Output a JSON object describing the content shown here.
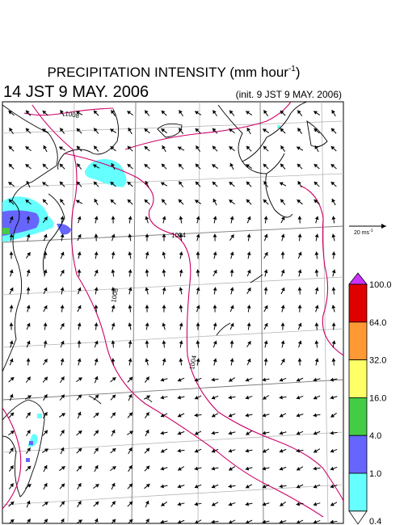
{
  "title": {
    "text": "PRECIPITATION INTENSITY (mm hour",
    "superscript": "-1",
    "close": ")"
  },
  "valid_time": "14 JST 9 MAY. 2006",
  "init_time": "(init. 9 JST 9 MAY. 2006)",
  "vector_scale": {
    "label": "20 ms",
    "superscript": "-1"
  },
  "isobar_labels": [
    "1008",
    "1004",
    "1008",
    "1004"
  ],
  "colorbar": {
    "labels": [
      "100.0",
      "64.0",
      "32.0",
      "16.0",
      "4.0",
      "1.0",
      "0.4"
    ],
    "colors": [
      "#cc33ff",
      "#e00000",
      "#ff9933",
      "#ffff66",
      "#44cc44",
      "#6666ff",
      "#66ffff",
      "#ffffff"
    ]
  }
}
